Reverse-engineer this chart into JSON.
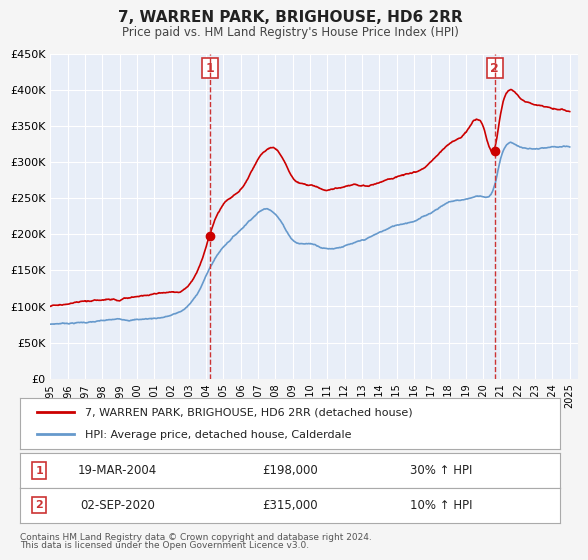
{
  "title": "7, WARREN PARK, BRIGHOUSE, HD6 2RR",
  "subtitle": "Price paid vs. HM Land Registry's House Price Index (HPI)",
  "red_label": "7, WARREN PARK, BRIGHOUSE, HD6 2RR (detached house)",
  "blue_label": "HPI: Average price, detached house, Calderdale",
  "annotation1": {
    "label": "1",
    "date": "19-MAR-2004",
    "price": "£198,000",
    "pct": "30% ↑ HPI",
    "x_year": 2004.21,
    "y_val": 198000
  },
  "annotation2": {
    "label": "2",
    "date": "02-SEP-2020",
    "price": "£315,000",
    "pct": "10% ↑ HPI",
    "x_year": 2020.67,
    "y_val": 315000
  },
  "footer1": "Contains HM Land Registry data © Crown copyright and database right 2024.",
  "footer2": "This data is licensed under the Open Government Licence v3.0.",
  "bg_color": "#f0f4fa",
  "plot_bg_color": "#e8eef8",
  "grid_color": "#ffffff",
  "red_color": "#cc0000",
  "blue_color": "#6699cc",
  "dashed_color": "#cc0000",
  "ylim": [
    0,
    450000
  ],
  "xlim_start": 1995.0,
  "xlim_end": 2025.5,
  "yticks": [
    0,
    50000,
    100000,
    150000,
    200000,
    250000,
    300000,
    350000,
    400000,
    450000
  ],
  "ytick_labels": [
    "£0",
    "£50K",
    "£100K",
    "£150K",
    "£200K",
    "£250K",
    "£300K",
    "£350K",
    "£400K",
    "£450K"
  ],
  "xticks": [
    1995,
    1996,
    1997,
    1998,
    1999,
    2000,
    2001,
    2002,
    2003,
    2004,
    2005,
    2006,
    2007,
    2008,
    2009,
    2010,
    2011,
    2012,
    2013,
    2014,
    2015,
    2016,
    2017,
    2018,
    2019,
    2020,
    2021,
    2022,
    2023,
    2024,
    2025
  ]
}
